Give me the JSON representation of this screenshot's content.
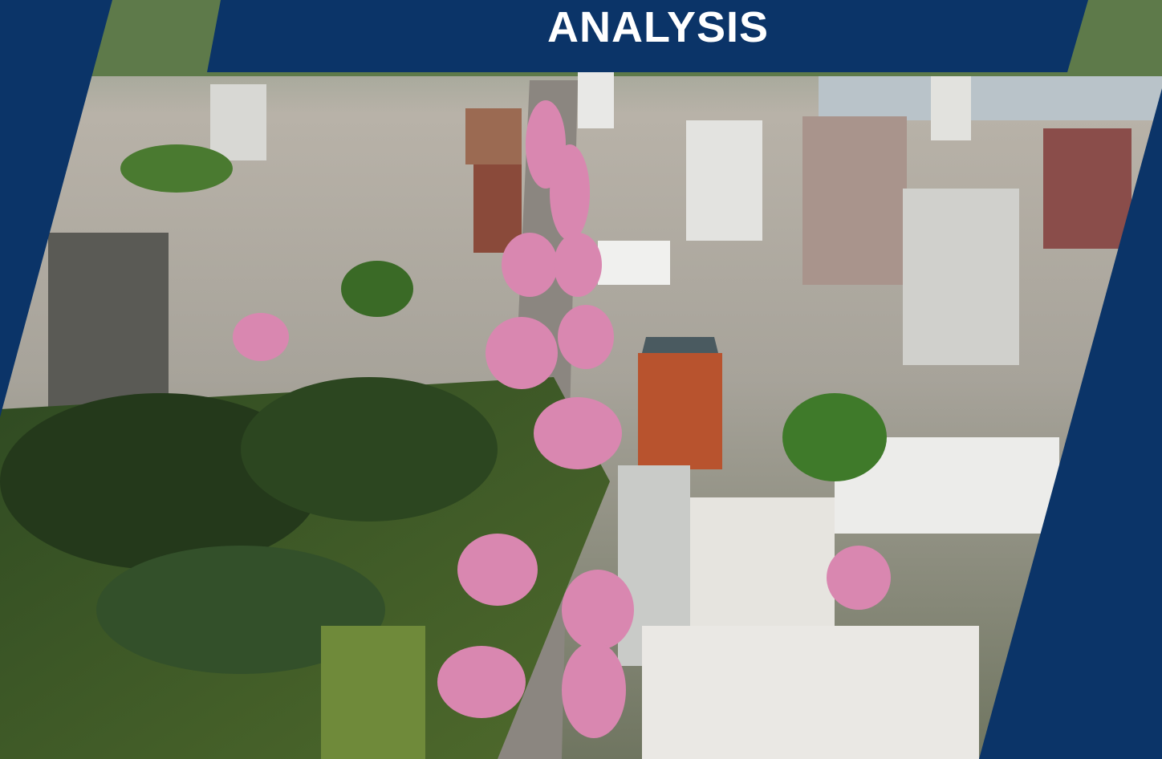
{
  "header": {
    "title": "ANALYSIS"
  }
}
